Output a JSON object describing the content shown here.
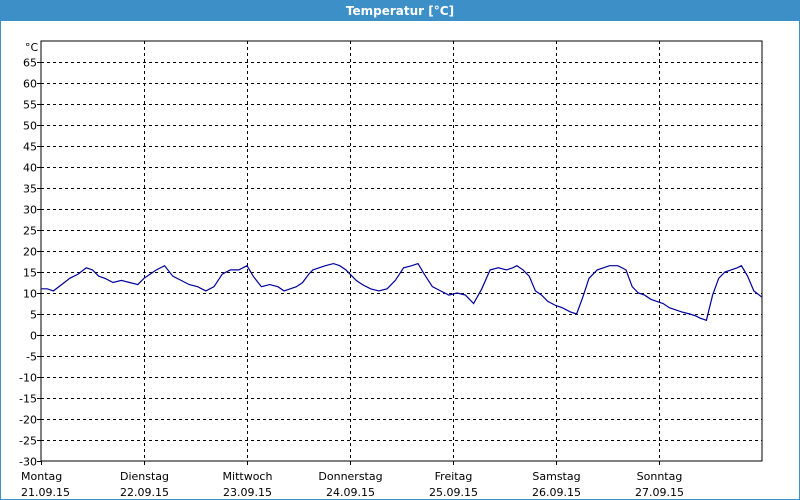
{
  "window": {
    "title": "Temperatur [°C]"
  },
  "colors": {
    "titlebar": "#3d8fc8",
    "series": "#00009c",
    "grid": "#000000"
  },
  "chart_data": {
    "type": "line",
    "title": "Temperatur [°C]",
    "ylabel": "°C",
    "ylim": [
      -30,
      70
    ],
    "yticks": [
      65,
      60,
      55,
      50,
      45,
      40,
      35,
      30,
      25,
      20,
      15,
      10,
      5,
      0,
      -5,
      -10,
      -15,
      -20,
      -25,
      -30
    ],
    "xlim": [
      0,
      7
    ],
    "x_categories": [
      {
        "day": "Montag",
        "date": "21.09.15"
      },
      {
        "day": "Dienstag",
        "date": "22.09.15"
      },
      {
        "day": "Mittwoch",
        "date": "23.09.15"
      },
      {
        "day": "Donnerstag",
        "date": "24.09.15"
      },
      {
        "day": "Freitag",
        "date": "25.09.15"
      },
      {
        "day": "Samstag",
        "date": "26.09.15"
      },
      {
        "day": "Sonntag",
        "date": "27.09.15"
      }
    ],
    "grid": true,
    "series": [
      {
        "x": [
          0.0,
          0.06,
          0.12,
          0.2,
          0.28,
          0.36,
          0.44,
          0.5,
          0.56,
          0.62,
          0.7,
          0.78,
          0.86,
          0.94,
          1.0,
          1.06,
          1.12,
          1.2,
          1.28,
          1.36,
          1.44,
          1.52,
          1.6,
          1.68,
          1.76,
          1.84,
          1.92,
          2.0,
          2.06,
          2.14,
          2.22,
          2.3,
          2.36,
          2.42,
          2.48,
          2.54,
          2.6,
          2.64,
          2.7,
          2.76,
          2.84,
          2.9,
          2.96,
          3.0,
          3.06,
          3.12,
          3.2,
          3.28,
          3.36,
          3.44,
          3.52,
          3.6,
          3.66,
          3.72,
          3.8,
          3.88,
          3.96,
          4.04,
          4.12,
          4.2,
          4.28,
          4.36,
          4.44,
          4.52,
          4.58,
          4.62,
          4.68,
          4.74,
          4.8,
          4.86,
          4.92,
          5.0,
          5.06,
          5.14,
          5.2,
          5.26,
          5.32,
          5.4,
          5.46,
          5.52,
          5.6,
          5.68,
          5.74,
          5.8,
          5.86,
          5.92,
          5.98,
          6.04,
          6.1,
          6.16,
          6.22,
          6.3,
          6.36,
          6.4,
          6.46,
          6.52,
          6.58,
          6.64,
          6.7,
          6.76,
          6.8,
          6.86,
          6.92,
          7.0
        ],
        "values": [
          11.0,
          11.0,
          10.5,
          12.0,
          13.5,
          14.5,
          16.0,
          15.5,
          14.0,
          13.5,
          12.5,
          13.0,
          12.5,
          12.0,
          13.5,
          14.5,
          15.5,
          16.5,
          14.0,
          13.0,
          12.0,
          11.5,
          10.5,
          11.5,
          14.5,
          15.5,
          15.5,
          16.5,
          14.0,
          11.5,
          12.0,
          11.5,
          10.5,
          11.0,
          11.5,
          12.5,
          14.5,
          15.5,
          16.0,
          16.5,
          17.0,
          16.5,
          15.5,
          14.5,
          13.0,
          12.0,
          11.0,
          10.5,
          11.0,
          13.0,
          16.0,
          16.5,
          17.0,
          14.5,
          11.5,
          10.5,
          9.5,
          10.0,
          9.5,
          7.5,
          11.0,
          15.5,
          16.0,
          15.5,
          16.0,
          16.5,
          15.5,
          14.0,
          10.5,
          9.5,
          8.0,
          7.0,
          6.5,
          5.5,
          5.0,
          9.0,
          13.5,
          15.5,
          16.0,
          16.5,
          16.5,
          15.5,
          11.5,
          10.0,
          9.5,
          8.5,
          8.0,
          7.5,
          6.5,
          6.0,
          5.5,
          5.0,
          4.5,
          4.0,
          3.5,
          9.5,
          13.5,
          15.0,
          15.5,
          16.0,
          16.5,
          14.0,
          10.5,
          9.0
        ]
      }
    ]
  }
}
